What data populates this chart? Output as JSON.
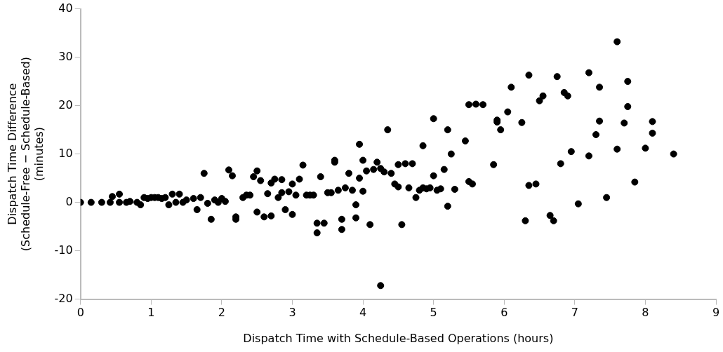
{
  "chart_data": {
    "type": "scatter",
    "xlabel": "Dispatch Time with Schedule-Based Operations (hours)",
    "ylabel": "Dispatch Time Difference\n(Schedule-Free − Schedule-Based)\n(minutes)",
    "xlim": [
      0,
      9
    ],
    "xticks": [
      0,
      1,
      2,
      3,
      4,
      5,
      6,
      7,
      8,
      9
    ],
    "ylim": [
      -20,
      40
    ],
    "yticks": [
      -20,
      -10,
      0,
      10,
      20,
      30,
      40
    ],
    "grid": false,
    "legend": false,
    "marker": "circle",
    "series": [
      {
        "color": "#000000",
        "x": [
          0,
          0.15,
          0.3,
          0.42,
          0.45,
          0.55,
          0.55,
          0.65,
          0.7,
          0.8,
          0.85,
          0.9,
          0.95,
          1.0,
          1.05,
          1.1,
          1.15,
          1.2,
          1.25,
          1.3,
          1.35,
          1.4,
          1.45,
          1.5,
          1.6,
          1.65,
          1.7,
          1.75,
          1.8,
          1.85,
          1.9,
          1.95,
          2.0,
          2.05,
          2.1,
          2.15,
          2.2,
          2.2,
          2.3,
          2.35,
          2.4,
          2.45,
          2.5,
          2.5,
          2.55,
          2.6,
          2.65,
          2.7,
          2.7,
          2.75,
          2.8,
          2.85,
          2.85,
          2.9,
          2.95,
          3.0,
          3.0,
          3.05,
          3.1,
          3.15,
          3.2,
          3.25,
          3.3,
          3.35,
          3.35,
          3.4,
          3.45,
          3.5,
          3.55,
          3.6,
          3.6,
          3.65,
          3.7,
          3.7,
          3.75,
          3.8,
          3.85,
          3.9,
          3.9,
          3.95,
          3.95,
          4.0,
          4.0,
          4.05,
          4.1,
          4.15,
          4.2,
          4.25,
          4.25,
          4.3,
          4.35,
          4.4,
          4.45,
          4.5,
          4.5,
          4.55,
          4.6,
          4.65,
          4.7,
          4.75,
          4.8,
          4.85,
          4.85,
          4.9,
          4.95,
          5.0,
          5.0,
          5.05,
          5.1,
          5.15,
          5.2,
          5.2,
          5.25,
          5.3,
          5.45,
          5.5,
          5.5,
          5.55,
          5.6,
          5.7,
          5.85,
          5.9,
          5.9,
          5.95,
          6.05,
          6.1,
          6.25,
          6.3,
          6.35,
          6.35,
          6.45,
          6.5,
          6.55,
          6.65,
          6.7,
          6.75,
          6.8,
          6.85,
          6.9,
          6.95,
          7.05,
          7.2,
          7.2,
          7.3,
          7.35,
          7.35,
          7.45,
          7.6,
          7.6,
          7.7,
          7.75,
          7.75,
          7.85,
          8.0,
          8.1,
          8.1,
          8.4
        ],
        "values": [
          0,
          0,
          0,
          0,
          1.2,
          1.7,
          0,
          0,
          0.2,
          0,
          -0.5,
          1,
          0.8,
          1,
          1,
          1,
          0.8,
          1,
          -0.5,
          1.7,
          0,
          1.7,
          0,
          0.5,
          0.8,
          -1.5,
          1,
          6,
          -0.2,
          -3.5,
          0.5,
          0,
          0.8,
          0.2,
          6.7,
          5.5,
          -3,
          -3.5,
          1,
          1.5,
          1.5,
          5.3,
          6.5,
          -2,
          4.5,
          -3,
          1.8,
          -2.8,
          4,
          4.8,
          1,
          4.7,
          2,
          -1.5,
          2.2,
          3.8,
          -2.5,
          1.5,
          4.8,
          7.7,
          1.5,
          1.5,
          1.5,
          -4.3,
          -6.3,
          5.3,
          -4.3,
          2,
          2,
          8.3,
          8.7,
          2.5,
          -3.5,
          -5.6,
          3,
          6,
          2.5,
          -0.5,
          -3.2,
          12,
          5,
          8.7,
          2.3,
          6.5,
          -4.6,
          6.8,
          8.3,
          -17.2,
          7,
          6.3,
          15,
          6,
          3.8,
          7.8,
          3.2,
          -4.6,
          8,
          3,
          8,
          1,
          2.5,
          11.7,
          3,
          2.8,
          3,
          17.3,
          5.5,
          2.5,
          2.8,
          6.8,
          -0.8,
          15,
          10,
          2.7,
          12.7,
          20.2,
          4.3,
          3.8,
          20.3,
          20.2,
          7.8,
          17,
          16.6,
          15,
          18.7,
          23.8,
          16.5,
          -3.8,
          26.3,
          3.5,
          3.8,
          21,
          22,
          -2.7,
          -3.8,
          26,
          8,
          22.7,
          22,
          10.5,
          -0.3,
          26.8,
          9.6,
          14,
          16.8,
          23.8,
          1,
          33.2,
          11,
          16.4,
          25,
          19.8,
          4.2,
          11.2,
          16.7,
          14.3,
          10
        ]
      }
    ]
  }
}
